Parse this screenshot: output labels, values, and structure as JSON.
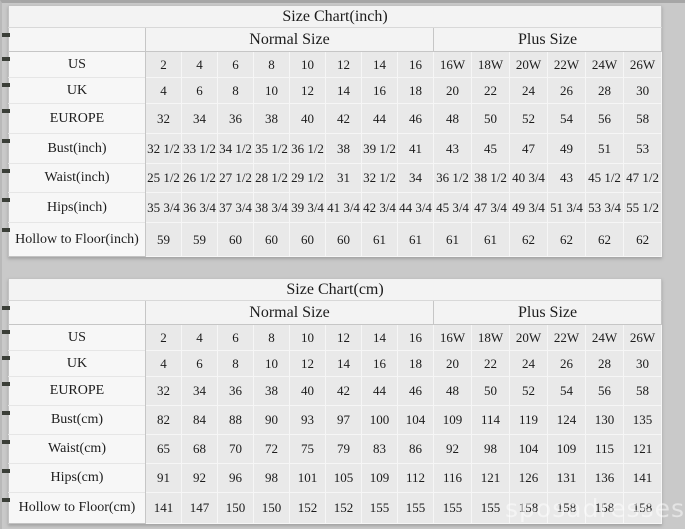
{
  "watermark": "sposadresses",
  "colors": {
    "background": "#c9c9c9",
    "table_bg": "#e9e9e9",
    "label_bg": "#f7f7f7",
    "header_bg": "#f3f3f3",
    "grid_line": "#f6f6f6",
    "divider_line": "#c6c6c6",
    "text": "#1c1c1c",
    "edge_marker": "#3b3f38"
  },
  "chart_data": [
    {
      "type": "table",
      "title": "Size Chart(inch)",
      "column_groups": [
        {
          "label": "Normal Size",
          "span": 8
        },
        {
          "label": "Plus Size",
          "span": 6
        }
      ],
      "rows": [
        {
          "label": "US",
          "values": [
            "2",
            "4",
            "6",
            "8",
            "10",
            "12",
            "14",
            "16",
            "16W",
            "18W",
            "20W",
            "22W",
            "24W",
            "26W"
          ]
        },
        {
          "label": "UK",
          "values": [
            "4",
            "6",
            "8",
            "10",
            "12",
            "14",
            "16",
            "18",
            "20",
            "22",
            "24",
            "26",
            "28",
            "30"
          ]
        },
        {
          "label": "EUROPE",
          "values": [
            "32",
            "34",
            "36",
            "38",
            "40",
            "42",
            "44",
            "46",
            "48",
            "50",
            "52",
            "54",
            "56",
            "58"
          ]
        },
        {
          "label": "Bust(inch)",
          "values": [
            "32 1/2",
            "33 1/2",
            "34 1/2",
            "35 1/2",
            "36 1/2",
            "38",
            "39 1/2",
            "41",
            "43",
            "45",
            "47",
            "49",
            "51",
            "53"
          ]
        },
        {
          "label": "Waist(inch)",
          "values": [
            "25 1/2",
            "26 1/2",
            "27 1/2",
            "28 1/2",
            "29 1/2",
            "31",
            "32 1/2",
            "34",
            "36 1/2",
            "38 1/2",
            "40 3/4",
            "43",
            "45 1/2",
            "47 1/2"
          ]
        },
        {
          "label": "Hips(inch)",
          "values": [
            "35 3/4",
            "36 3/4",
            "37 3/4",
            "38 3/4",
            "39 3/4",
            "41 3/4",
            "42 3/4",
            "44 3/4",
            "45 3/4",
            "47 3/4",
            "49 3/4",
            "51 3/4",
            "53 3/4",
            "55 1/2"
          ]
        },
        {
          "label": "Hollow to Floor(inch)",
          "values": [
            "59",
            "59",
            "60",
            "60",
            "60",
            "60",
            "61",
            "61",
            "61",
            "61",
            "62",
            "62",
            "62",
            "62"
          ]
        }
      ]
    },
    {
      "type": "table",
      "title": "Size Chart(cm)",
      "column_groups": [
        {
          "label": "Normal Size",
          "span": 8
        },
        {
          "label": "Plus Size",
          "span": 6
        }
      ],
      "rows": [
        {
          "label": "US",
          "values": [
            "2",
            "4",
            "6",
            "8",
            "10",
            "12",
            "14",
            "16",
            "16W",
            "18W",
            "20W",
            "22W",
            "24W",
            "26W"
          ]
        },
        {
          "label": "UK",
          "values": [
            "4",
            "6",
            "8",
            "10",
            "12",
            "14",
            "16",
            "18",
            "20",
            "22",
            "24",
            "26",
            "28",
            "30"
          ]
        },
        {
          "label": "EUROPE",
          "values": [
            "32",
            "34",
            "36",
            "38",
            "40",
            "42",
            "44",
            "46",
            "48",
            "50",
            "52",
            "54",
            "56",
            "58"
          ]
        },
        {
          "label": "Bust(cm)",
          "values": [
            "82",
            "84",
            "88",
            "90",
            "93",
            "97",
            "100",
            "104",
            "109",
            "114",
            "119",
            "124",
            "130",
            "135"
          ]
        },
        {
          "label": "Waist(cm)",
          "values": [
            "65",
            "68",
            "70",
            "72",
            "75",
            "79",
            "83",
            "86",
            "92",
            "98",
            "104",
            "109",
            "115",
            "121"
          ]
        },
        {
          "label": "Hips(cm)",
          "values": [
            "91",
            "92",
            "96",
            "98",
            "101",
            "105",
            "109",
            "112",
            "116",
            "121",
            "126",
            "131",
            "136",
            "141"
          ]
        },
        {
          "label": "Hollow to Floor(cm)",
          "values": [
            "141",
            "147",
            "150",
            "150",
            "152",
            "152",
            "155",
            "155",
            "155",
            "155",
            "158",
            "158",
            "158",
            "158"
          ]
        }
      ]
    }
  ]
}
